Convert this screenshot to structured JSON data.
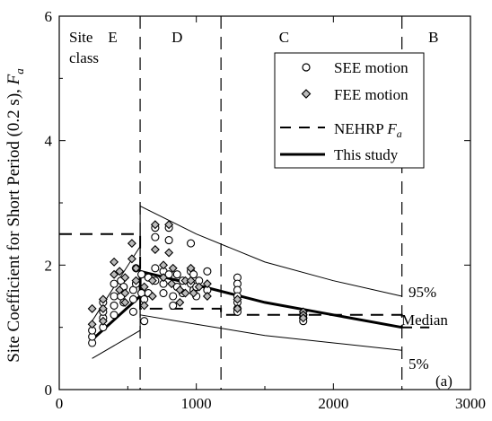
{
  "chart_data": {
    "type": "scatter",
    "ylabel": "Site Coefficient for Short Period (0.2 s), ",
    "ylabel_var": "F",
    "ylabel_sub": "a",
    "panel_label": "(a)",
    "xlim": [
      0,
      3000
    ],
    "ylim": [
      0,
      6
    ],
    "x_ticks": [
      0,
      1000,
      2000,
      3000
    ],
    "y_ticks": [
      0,
      2,
      4,
      6
    ],
    "grid": false,
    "legend_position": "top-right",
    "site_class": {
      "label_line1": "Site",
      "label_line2": "class",
      "classes": [
        {
          "name": "E",
          "x": 390
        },
        {
          "name": "D",
          "x": 860
        },
        {
          "name": "C",
          "x": 1640
        },
        {
          "name": "B",
          "x": 2730
        }
      ],
      "boundaries": [
        590,
        1180,
        2500
      ]
    },
    "legend": {
      "see": "SEE motion",
      "fee": "FEE motion",
      "nehrp": "NEHRP ",
      "nehrp_var": "F",
      "nehrp_sub": "a",
      "study": "This study"
    },
    "curve_labels": {
      "p95": "95%",
      "median": "Median",
      "p5": "5%"
    },
    "nehrp_fa": {
      "x": [
        0,
        590,
        590,
        1180,
        1180,
        2500,
        2500,
        2700
      ],
      "y": [
        2.5,
        2.5,
        1.3,
        1.3,
        1.2,
        1.2,
        1.0,
        1.0
      ]
    },
    "this_study": {
      "median": {
        "x": [
          240,
          590,
          590,
          1000,
          1500,
          2000,
          2500
        ],
        "y": [
          0.8,
          1.5,
          1.9,
          1.68,
          1.4,
          1.2,
          1.0
        ]
      },
      "p95": {
        "x": [
          240,
          590,
          590,
          1000,
          1500,
          2000,
          2500
        ],
        "y": [
          1.1,
          2.3,
          2.95,
          2.5,
          2.05,
          1.75,
          1.5
        ]
      },
      "p5": {
        "x": [
          240,
          590,
          590,
          1000,
          1500,
          2000,
          2500
        ],
        "y": [
          0.5,
          0.95,
          1.2,
          1.05,
          0.87,
          0.75,
          0.63
        ]
      }
    },
    "see_points": {
      "x": [
        240,
        240,
        240,
        320,
        320,
        320,
        320,
        400,
        400,
        400,
        400,
        450,
        450,
        470,
        470,
        540,
        540,
        540,
        560,
        560,
        600,
        600,
        620,
        620,
        650,
        650,
        700,
        700,
        700,
        700,
        760,
        760,
        760,
        800,
        800,
        800,
        830,
        830,
        860,
        860,
        900,
        900,
        960,
        960,
        960,
        980,
        980,
        1000,
        1000,
        1020,
        1080,
        1080,
        1300,
        1300,
        1300,
        1300,
        1300,
        1300,
        1300,
        1780,
        1780,
        1780
      ],
      "y": [
        0.75,
        0.85,
        0.95,
        1.0,
        1.15,
        1.25,
        1.4,
        1.2,
        1.35,
        1.5,
        1.7,
        1.5,
        1.75,
        1.4,
        1.65,
        1.25,
        1.45,
        1.6,
        1.7,
        1.95,
        1.85,
        1.55,
        1.45,
        1.1,
        1.8,
        1.55,
        2.6,
        2.45,
        1.95,
        1.75,
        1.9,
        1.7,
        1.55,
        2.6,
        2.4,
        1.85,
        1.5,
        1.35,
        1.85,
        1.65,
        1.75,
        1.55,
        2.35,
        1.9,
        1.7,
        1.85,
        1.6,
        1.5,
        1.65,
        1.75,
        1.9,
        1.6,
        1.8,
        1.7,
        1.6,
        1.5,
        1.4,
        1.3,
        1.25,
        1.2,
        1.15,
        1.1
      ]
    },
    "fee_points": {
      "x": [
        240,
        240,
        320,
        320,
        320,
        400,
        400,
        440,
        440,
        480,
        480,
        480,
        530,
        530,
        560,
        560,
        620,
        620,
        680,
        680,
        700,
        700,
        760,
        760,
        800,
        800,
        820,
        830,
        880,
        880,
        920,
        920,
        960,
        960,
        980,
        1020,
        1080,
        1080,
        1300,
        1300,
        1780,
        1780,
        1780
      ],
      "y": [
        1.3,
        1.05,
        1.45,
        1.3,
        1.1,
        2.05,
        1.85,
        1.9,
        1.6,
        1.8,
        1.55,
        1.4,
        2.35,
        2.1,
        1.95,
        1.75,
        1.35,
        1.65,
        1.75,
        1.5,
        2.65,
        2.25,
        2.0,
        1.8,
        2.65,
        2.2,
        1.7,
        1.95,
        1.6,
        1.4,
        1.55,
        1.75,
        1.95,
        1.75,
        1.55,
        1.65,
        1.7,
        1.5,
        1.3,
        1.45,
        1.25,
        1.2,
        1.15
      ]
    }
  }
}
